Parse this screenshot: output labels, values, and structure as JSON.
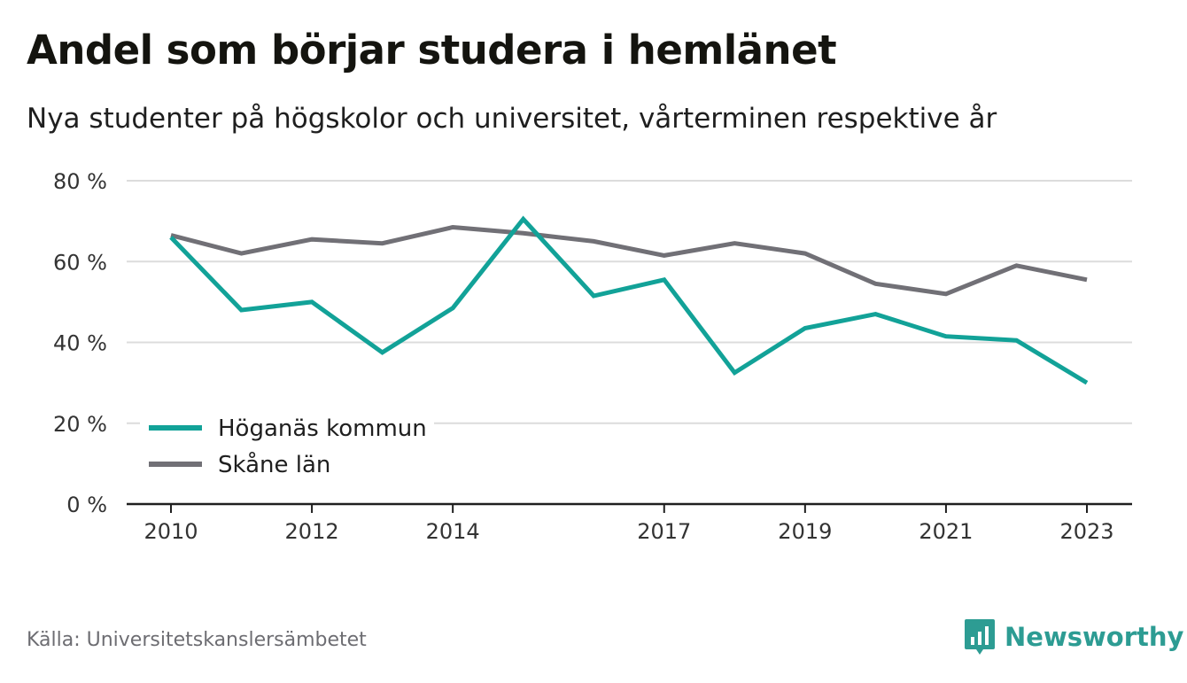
{
  "title": "Andel som börjar studera i hemlänet",
  "subtitle": "Nya studenter på högskolor och universitet, vårterminen respektive år",
  "source": "Källa: Universitetskanslersämbetet",
  "brand": {
    "name": "Newsworthy",
    "icon": "newsworthy-logo-icon",
    "color": "#2d9c93"
  },
  "chart_data": {
    "type": "line",
    "x": [
      2010,
      2011,
      2012,
      2013,
      2014,
      2015,
      2016,
      2017,
      2018,
      2019,
      2020,
      2021,
      2022,
      2023
    ],
    "x_tick_labels": [
      "2010",
      "2012",
      "2014",
      "2017",
      "2019",
      "2021",
      "2023"
    ],
    "x_ticks": [
      2010,
      2012,
      2014,
      2017,
      2019,
      2021,
      2023
    ],
    "y_ticks": [
      0,
      20,
      40,
      60,
      80
    ],
    "y_tick_labels": [
      "0 %",
      "20 %",
      "40 %",
      "60 %",
      "80 %"
    ],
    "ylim": [
      0,
      80
    ],
    "grid": true,
    "legend_position": "bottom-left",
    "series": [
      {
        "name": "Höganäs kommun",
        "color": "#12a298",
        "values": [
          66,
          48,
          50,
          37.5,
          48.5,
          70.5,
          51.5,
          55.5,
          32.5,
          43.5,
          47,
          41.5,
          40.5,
          30
        ]
      },
      {
        "name": "Skåne län",
        "color": "#717076",
        "values": [
          66.5,
          62,
          65.5,
          64.5,
          68.5,
          67,
          65,
          61.5,
          64.5,
          62,
          54.5,
          52,
          59,
          55.5
        ]
      }
    ]
  }
}
